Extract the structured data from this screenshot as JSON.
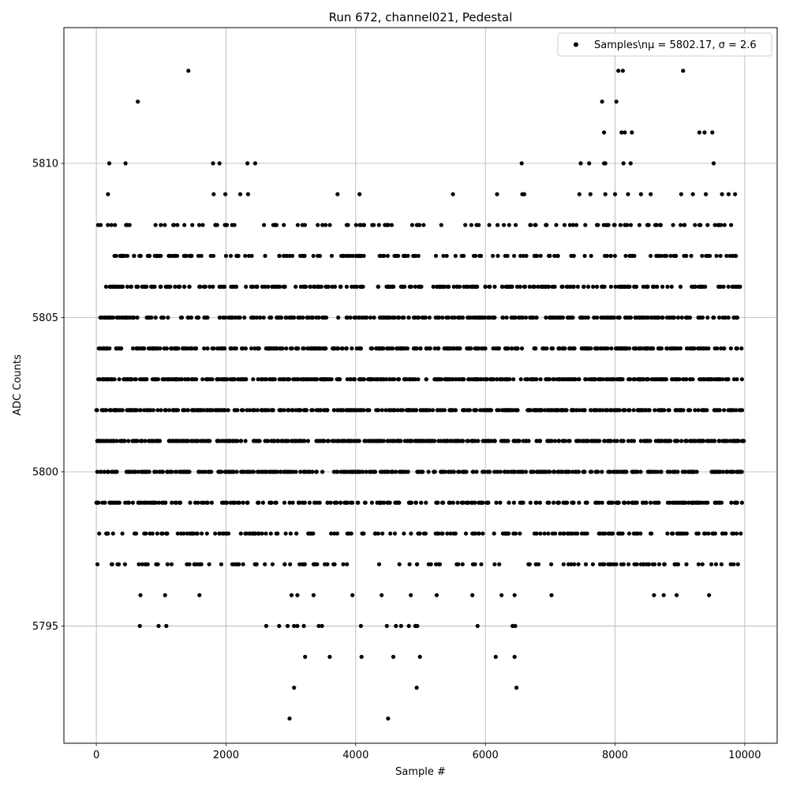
{
  "chart_data": {
    "type": "scatter",
    "title": "Run 672, channel021, Pedestal",
    "xlabel": "Sample #",
    "ylabel": "ADC Counts",
    "xlim": [
      -500,
      10500
    ],
    "ylim": [
      5791.2,
      5814.4
    ],
    "xticks": [
      0,
      2000,
      4000,
      6000,
      8000,
      10000
    ],
    "xtick_labels": [
      "0",
      "2000",
      "4000",
      "6000",
      "8000",
      "10000"
    ],
    "yticks": [
      5795,
      5800,
      5805,
      5810
    ],
    "ytick_labels": [
      "5795",
      "5800",
      "5805",
      "5810"
    ],
    "grid": true,
    "legend_position": "top-right",
    "marker_color": "#000000",
    "series": [
      {
        "name": "Samples\\nμ = 5802.17, σ = 2.6",
        "legend_label": "Samples\\nμ = 5802.17, σ = 2.6",
        "points": [
          [
            1420,
            5813
          ],
          [
            8050,
            5813
          ],
          [
            8120,
            5813
          ],
          [
            9050,
            5813
          ],
          [
            640,
            5812
          ],
          [
            7800,
            5812
          ],
          [
            8020,
            5812
          ],
          [
            7830,
            5811
          ],
          [
            8100,
            5811
          ],
          [
            8150,
            5811
          ],
          [
            8260,
            5811
          ],
          [
            9300,
            5811
          ],
          [
            9380,
            5811
          ],
          [
            9500,
            5811
          ],
          [
            200,
            5810
          ],
          [
            450,
            5810
          ],
          [
            1800,
            5810
          ],
          [
            1900,
            5810
          ],
          [
            2330,
            5810
          ],
          [
            2450,
            5810
          ],
          [
            6560,
            5810
          ],
          [
            7470,
            5810
          ],
          [
            7600,
            5810
          ],
          [
            7830,
            5810
          ],
          [
            7850,
            5810
          ],
          [
            8130,
            5810
          ],
          [
            8240,
            5810
          ],
          [
            9520,
            5810
          ],
          [
            180,
            5809
          ],
          [
            1810,
            5809
          ],
          [
            1990,
            5809
          ],
          [
            2220,
            5809
          ],
          [
            2340,
            5809
          ],
          [
            3720,
            5809
          ],
          [
            4060,
            5809
          ],
          [
            5500,
            5809
          ],
          [
            6180,
            5809
          ],
          [
            6570,
            5809
          ],
          [
            6600,
            5809
          ],
          [
            7450,
            5809
          ],
          [
            7620,
            5809
          ],
          [
            7850,
            5809
          ],
          [
            8000,
            5809
          ],
          [
            8200,
            5809
          ],
          [
            8400,
            5809
          ],
          [
            8550,
            5809
          ],
          [
            9020,
            5809
          ],
          [
            9200,
            5809
          ],
          [
            9400,
            5809
          ],
          [
            9650,
            5809
          ],
          [
            9750,
            5809
          ],
          [
            9850,
            5809
          ],
          [
            3010,
            5796
          ],
          [
            3100,
            5796
          ],
          [
            3350,
            5796
          ],
          [
            3950,
            5796
          ],
          [
            4400,
            5796
          ],
          [
            4850,
            5796
          ],
          [
            5250,
            5796
          ],
          [
            5800,
            5796
          ],
          [
            6250,
            5796
          ],
          [
            6450,
            5796
          ],
          [
            7020,
            5796
          ],
          [
            8600,
            5796
          ],
          [
            8750,
            5796
          ],
          [
            8950,
            5796
          ],
          [
            9450,
            5796
          ],
          [
            680,
            5796
          ],
          [
            1060,
            5796
          ],
          [
            1590,
            5796
          ],
          [
            670,
            5795
          ],
          [
            960,
            5795
          ],
          [
            1080,
            5795
          ],
          [
            2620,
            5795
          ],
          [
            2820,
            5795
          ],
          [
            2950,
            5795
          ],
          [
            3050,
            5795
          ],
          [
            3100,
            5795
          ],
          [
            3200,
            5795
          ],
          [
            3430,
            5795
          ],
          [
            3480,
            5795
          ],
          [
            4080,
            5795
          ],
          [
            4480,
            5795
          ],
          [
            4620,
            5795
          ],
          [
            4700,
            5795
          ],
          [
            4820,
            5795
          ],
          [
            4920,
            5795
          ],
          [
            4950,
            5795
          ],
          [
            5880,
            5795
          ],
          [
            6420,
            5795
          ],
          [
            6460,
            5795
          ],
          [
            3220,
            5794
          ],
          [
            3600,
            5794
          ],
          [
            4090,
            5794
          ],
          [
            4580,
            5794
          ],
          [
            4990,
            5794
          ],
          [
            6160,
            5794
          ],
          [
            6450,
            5794
          ],
          [
            3050,
            5793
          ],
          [
            4940,
            5793
          ],
          [
            6480,
            5793
          ],
          [
            2980,
            5792
          ],
          [
            4500,
            5792
          ]
        ],
        "dense_bands": [
          {
            "y": 5804,
            "count": 350,
            "x_range": [
              30,
              9990
            ]
          },
          {
            "y": 5803,
            "count": 440,
            "x_range": [
              0,
              10000
            ]
          },
          {
            "y": 5802,
            "count": 460,
            "x_range": [
              0,
              10000
            ]
          },
          {
            "y": 5801,
            "count": 450,
            "x_range": [
              0,
              10000
            ]
          },
          {
            "y": 5800,
            "count": 380,
            "x_range": [
              0,
              9990
            ]
          },
          {
            "y": 5805,
            "count": 330,
            "x_range": [
              60,
              9960
            ]
          },
          {
            "y": 5799,
            "count": 250,
            "x_range": [
              0,
              9960
            ]
          },
          {
            "y": 5806,
            "count": 260,
            "x_range": [
              70,
              9960
            ]
          },
          {
            "y": 5798,
            "count": 180,
            "x_range": [
              0,
              9960
            ]
          },
          {
            "y": 5807,
            "count": 170,
            "x_range": [
              180,
              9880
            ]
          },
          {
            "y": 5797,
            "count": 120,
            "x_range": [
              0,
              9900
            ]
          },
          {
            "y": 5808,
            "count": 120,
            "x_range": [
              0,
              9800
            ]
          }
        ]
      }
    ]
  }
}
